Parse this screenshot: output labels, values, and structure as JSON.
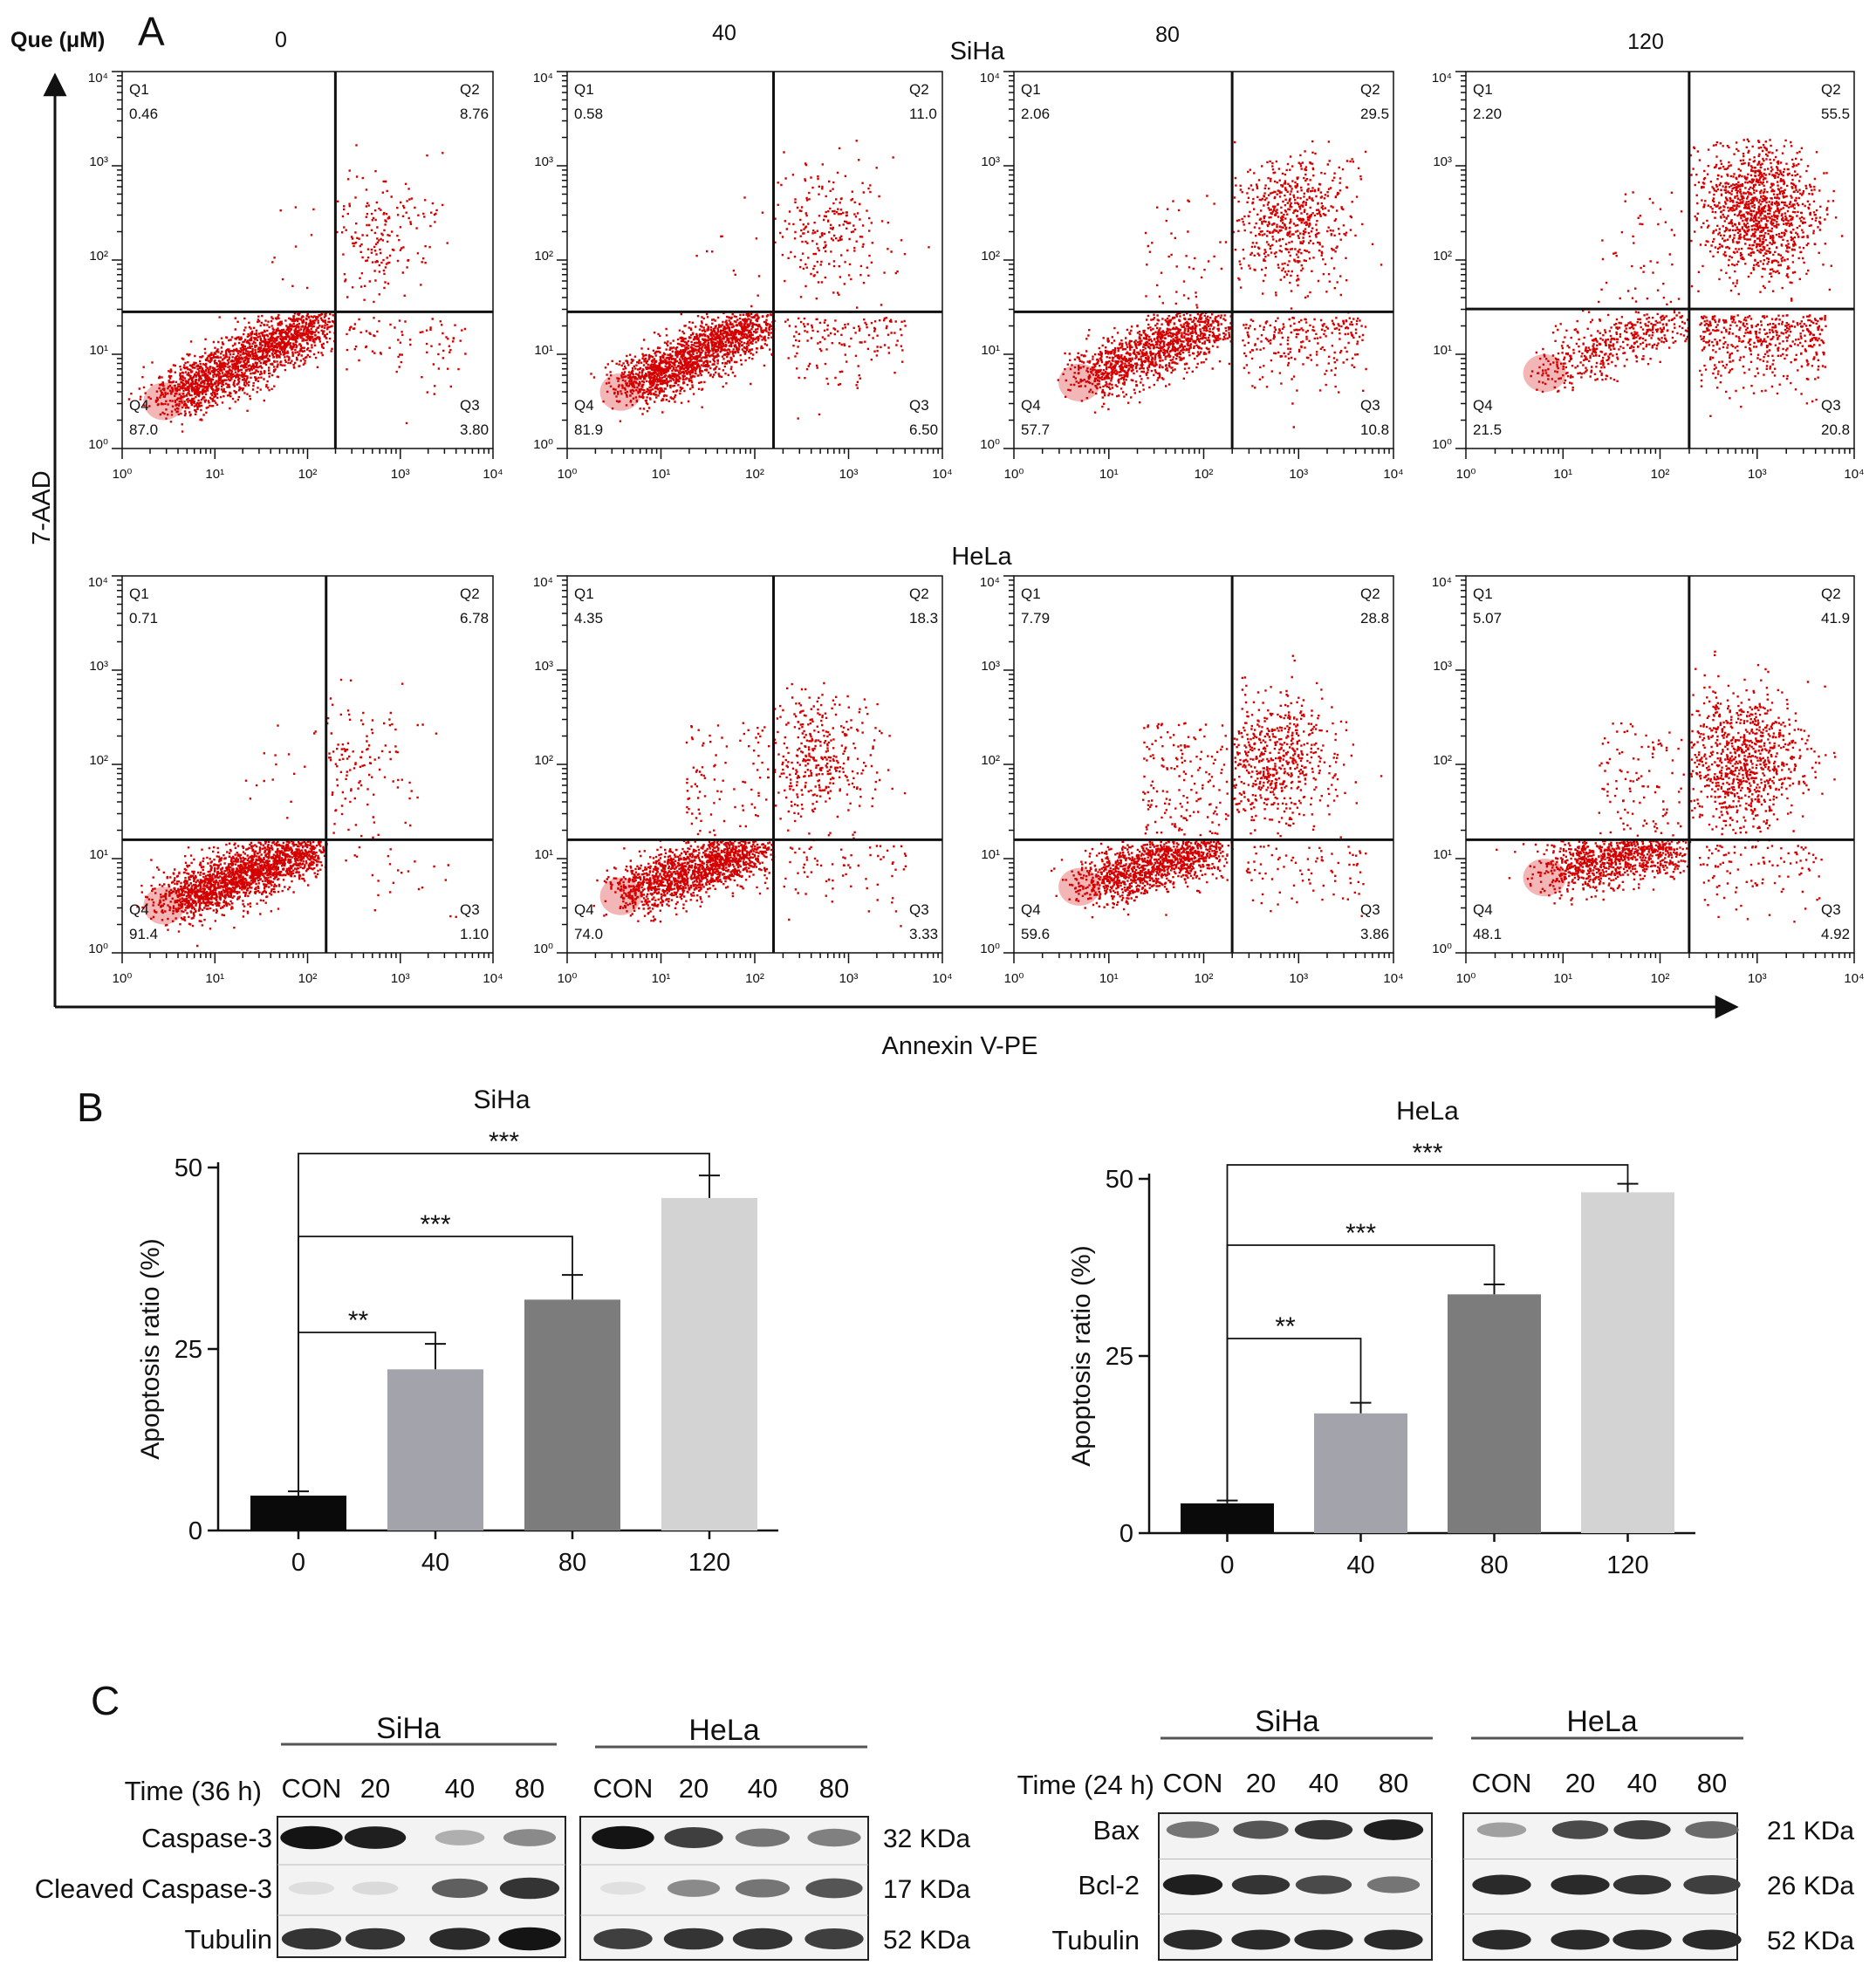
{
  "panel_labels": {
    "a": "A",
    "b": "B",
    "c": "C"
  },
  "panel_a": {
    "dose_label": "Que (μM)",
    "doses": [
      "0",
      "40",
      "80",
      "120"
    ],
    "row_titles": [
      "SiHa",
      "HeLa"
    ],
    "y_axis_label": "7-AAD",
    "x_axis_label": "Annexin V-PE",
    "quadrant_names": [
      "Q1",
      "Q2",
      "Q3",
      "Q4"
    ],
    "colors": {
      "dots": "#d40000",
      "dense": "#cc0000",
      "cluster": "#f2b6b6"
    }
  },
  "chart_data": [
    {
      "type": "scatter",
      "panel": "A",
      "row": "SiHa",
      "x_label": "Annexin V-PE",
      "y_label": "7-AAD",
      "x_scale": "log",
      "y_scale": "log",
      "xlim": [
        1,
        10000
      ],
      "ylim": [
        1,
        10000
      ],
      "x_tick_labels": [
        "10⁰",
        "10¹",
        "10²",
        "10³",
        "10⁴"
      ],
      "y_tick_labels": [
        "10⁰",
        "10¹",
        "10²",
        "10³",
        "10⁴"
      ],
      "plots": [
        {
          "dose": "0",
          "quadrants": {
            "Q1": "0.46",
            "Q2": "8.76",
            "Q3": "3.80",
            "Q4": "87.0"
          }
        },
        {
          "dose": "40",
          "quadrants": {
            "Q1": "0.58",
            "Q2": "11.0",
            "Q3": "6.50",
            "Q4": "81.9"
          }
        },
        {
          "dose": "80",
          "quadrants": {
            "Q1": "2.06",
            "Q2": "29.5",
            "Q3": "10.8",
            "Q4": "57.7"
          }
        },
        {
          "dose": "120",
          "quadrants": {
            "Q1": "2.20",
            "Q2": "55.5",
            "Q3": "20.8",
            "Q4": "21.5"
          }
        }
      ]
    },
    {
      "type": "scatter",
      "panel": "A",
      "row": "HeLa",
      "x_label": "Annexin V-PE",
      "y_label": "7-AAD",
      "x_scale": "log",
      "y_scale": "log",
      "xlim": [
        1,
        10000
      ],
      "ylim": [
        1,
        10000
      ],
      "x_tick_labels": [
        "10⁰",
        "10¹",
        "10²",
        "10³",
        "10⁴"
      ],
      "y_tick_labels": [
        "10⁰",
        "10¹",
        "10²",
        "10³",
        "10⁴"
      ],
      "plots": [
        {
          "dose": "0",
          "quadrants": {
            "Q1": "0.71",
            "Q2": "6.78",
            "Q3": "1.10",
            "Q4": "91.4"
          }
        },
        {
          "dose": "40",
          "quadrants": {
            "Q1": "4.35",
            "Q2": "18.3",
            "Q3": "3.33",
            "Q4": "74.0"
          }
        },
        {
          "dose": "80",
          "quadrants": {
            "Q1": "7.79",
            "Q2": "28.8",
            "Q3": "3.86",
            "Q4": "59.6"
          }
        },
        {
          "dose": "120",
          "quadrants": {
            "Q1": "5.07",
            "Q2": "41.9",
            "Q3": "4.92",
            "Q4": "48.1"
          }
        }
      ]
    },
    {
      "type": "bar",
      "panel": "B",
      "title": "SiHa",
      "ylabel": "Apoptosis ratio (%)",
      "categories": [
        "0",
        "40",
        "80",
        "120"
      ],
      "values": [
        4.8,
        22.2,
        31.8,
        45.8
      ],
      "errors": [
        0.6,
        3.5,
        3.4,
        3.1
      ],
      "ylim": [
        0,
        50
      ],
      "yticks": [
        "0",
        "25",
        "50"
      ],
      "colors": [
        "#0a0a0a",
        "#a3a3ab",
        "#7c7c7c",
        "#d3d3d3"
      ],
      "significance": [
        {
          "from": "0",
          "to": "40",
          "label": "**"
        },
        {
          "from": "0",
          "to": "80",
          "label": "***"
        },
        {
          "from": "0",
          "to": "120",
          "label": "***"
        }
      ]
    },
    {
      "type": "bar",
      "panel": "B",
      "title": "HeLa",
      "ylabel": "Apoptosis ratio (%)",
      "categories": [
        "0",
        "40",
        "80",
        "120"
      ],
      "values": [
        4.2,
        16.9,
        33.7,
        48.1
      ],
      "errors": [
        0.4,
        1.5,
        1.4,
        1.2
      ],
      "ylim": [
        0,
        50
      ],
      "yticks": [
        "0",
        "25",
        "50"
      ],
      "colors": [
        "#0a0a0a",
        "#a3a3ab",
        "#7c7c7c",
        "#d3d3d3"
      ],
      "significance": [
        {
          "from": "0",
          "to": "40",
          "label": "**"
        },
        {
          "from": "0",
          "to": "80",
          "label": "***"
        },
        {
          "from": "0",
          "to": "120",
          "label": "***"
        }
      ]
    }
  ],
  "panel_c": {
    "blots": [
      {
        "time_label": "Time (36 h)",
        "cell_lines": [
          "SiHa",
          "HeLa"
        ],
        "lanes": [
          "CON",
          "20",
          "40",
          "80"
        ],
        "rows": [
          {
            "label": "Caspase-3",
            "kda": "32 KDa",
            "intensity": [
              [
                1.0,
                0.95,
                0.28,
                0.45
              ],
              [
                1.0,
                0.8,
                0.55,
                0.5
              ]
            ]
          },
          {
            "label": "Cleaved Caspase-3",
            "kda": "17 KDa",
            "intensity": [
              [
                0.06,
                0.08,
                0.65,
                0.85
              ],
              [
                0.05,
                0.45,
                0.55,
                0.7
              ]
            ]
          },
          {
            "label": "Tubulin",
            "kda": "52 KDa",
            "intensity": [
              [
                0.85,
                0.85,
                0.9,
                1.0
              ],
              [
                0.8,
                0.85,
                0.85,
                0.8
              ]
            ]
          }
        ]
      },
      {
        "time_label": "Time (24 h)",
        "cell_lines": [
          "SiHa",
          "HeLa"
        ],
        "lanes": [
          "CON",
          "20",
          "40",
          "80"
        ],
        "rows": [
          {
            "label": "Bax",
            "kda": "21 KDa",
            "intensity": [
              [
                0.55,
                0.7,
                0.85,
                0.95
              ],
              [
                0.35,
                0.75,
                0.8,
                0.6
              ]
            ]
          },
          {
            "label": "Bcl-2",
            "kda": "26 KDa",
            "intensity": [
              [
                0.95,
                0.85,
                0.75,
                0.55
              ],
              [
                0.9,
                0.9,
                0.85,
                0.8
              ]
            ]
          },
          {
            "label": "Tubulin",
            "kda": "52 KDa",
            "intensity": [
              [
                0.9,
                0.9,
                0.9,
                0.9
              ],
              [
                0.9,
                0.9,
                0.9,
                0.9
              ]
            ]
          }
        ]
      }
    ]
  }
}
